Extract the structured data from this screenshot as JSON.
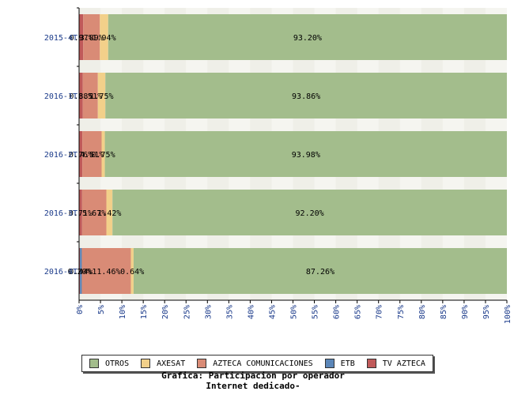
{
  "chart_data": {
    "type": "bar",
    "orientation": "horizontal",
    "stacked": true,
    "categories": [
      "2015-4T",
      "2016-1T",
      "2016-2T",
      "2016-3T",
      "2016-4T"
    ],
    "series": [
      {
        "name": "TV AZTECA",
        "color": "#c05a5a",
        "values": [
          0.97,
          0.88,
          0.76,
          0.71,
          0.2
        ],
        "labels": [
          "0.97%",
          "0.88%",
          "0.76%",
          "0.71%",
          "0.20%"
        ]
      },
      {
        "name": "ETB",
        "color": "#5b86b8",
        "values": [
          0,
          0,
          0,
          0,
          0.44
        ],
        "labels": [
          "",
          "",
          "",
          "",
          "0.44%"
        ]
      },
      {
        "name": "AZTECA COMUNICACIONES",
        "color": "#d98b76",
        "values": [
          3.89,
          3.51,
          4.51,
          5.67,
          11.46
        ],
        "labels": [
          "3.89%",
          "3.51%",
          "4.51%",
          "5.67%",
          "11.46%"
        ]
      },
      {
        "name": "AXESAT",
        "color": "#f2d08a",
        "values": [
          1.94,
          1.75,
          0.75,
          1.42,
          0.64
        ],
        "labels": [
          "1.94%",
          "1.75%",
          "0.75%",
          "1.42%",
          "0.64%"
        ]
      },
      {
        "name": "OTROS",
        "color": "#a3bd8c",
        "values": [
          93.2,
          93.86,
          93.98,
          92.2,
          87.26
        ],
        "labels": [
          "93.20%",
          "93.86%",
          "93.98%",
          "92.20%",
          "87.26%"
        ]
      }
    ],
    "x_ticks": [
      "0%",
      "5%",
      "10%",
      "15%",
      "20%",
      "25%",
      "30%",
      "35%",
      "40%",
      "45%",
      "50%",
      "55%",
      "60%",
      "65%",
      "70%",
      "75%",
      "80%",
      "85%",
      "90%",
      "95%",
      "100%"
    ],
    "xlim": [
      0,
      100
    ],
    "legend_placement": "bottom",
    "grid": false
  },
  "legend": [
    {
      "name": "OTROS",
      "color": "#a3bd8c"
    },
    {
      "name": "AXESAT",
      "color": "#f2d08a"
    },
    {
      "name": "AZTECA COMUNICACIONES",
      "color": "#d98b76"
    },
    {
      "name": "ETB",
      "color": "#5b86b8"
    },
    {
      "name": "TV AZTECA",
      "color": "#c05a5a"
    }
  ],
  "caption": {
    "line1": "Grafica: Participacion por operador",
    "line2": "Internet dedicado-"
  },
  "colors": {
    "axis": "#000000",
    "category_label": "#1a3a8a",
    "tick_label": "#1a3a8a",
    "band_light": "#f5f5f0",
    "band_tile": "#ebebe3"
  }
}
